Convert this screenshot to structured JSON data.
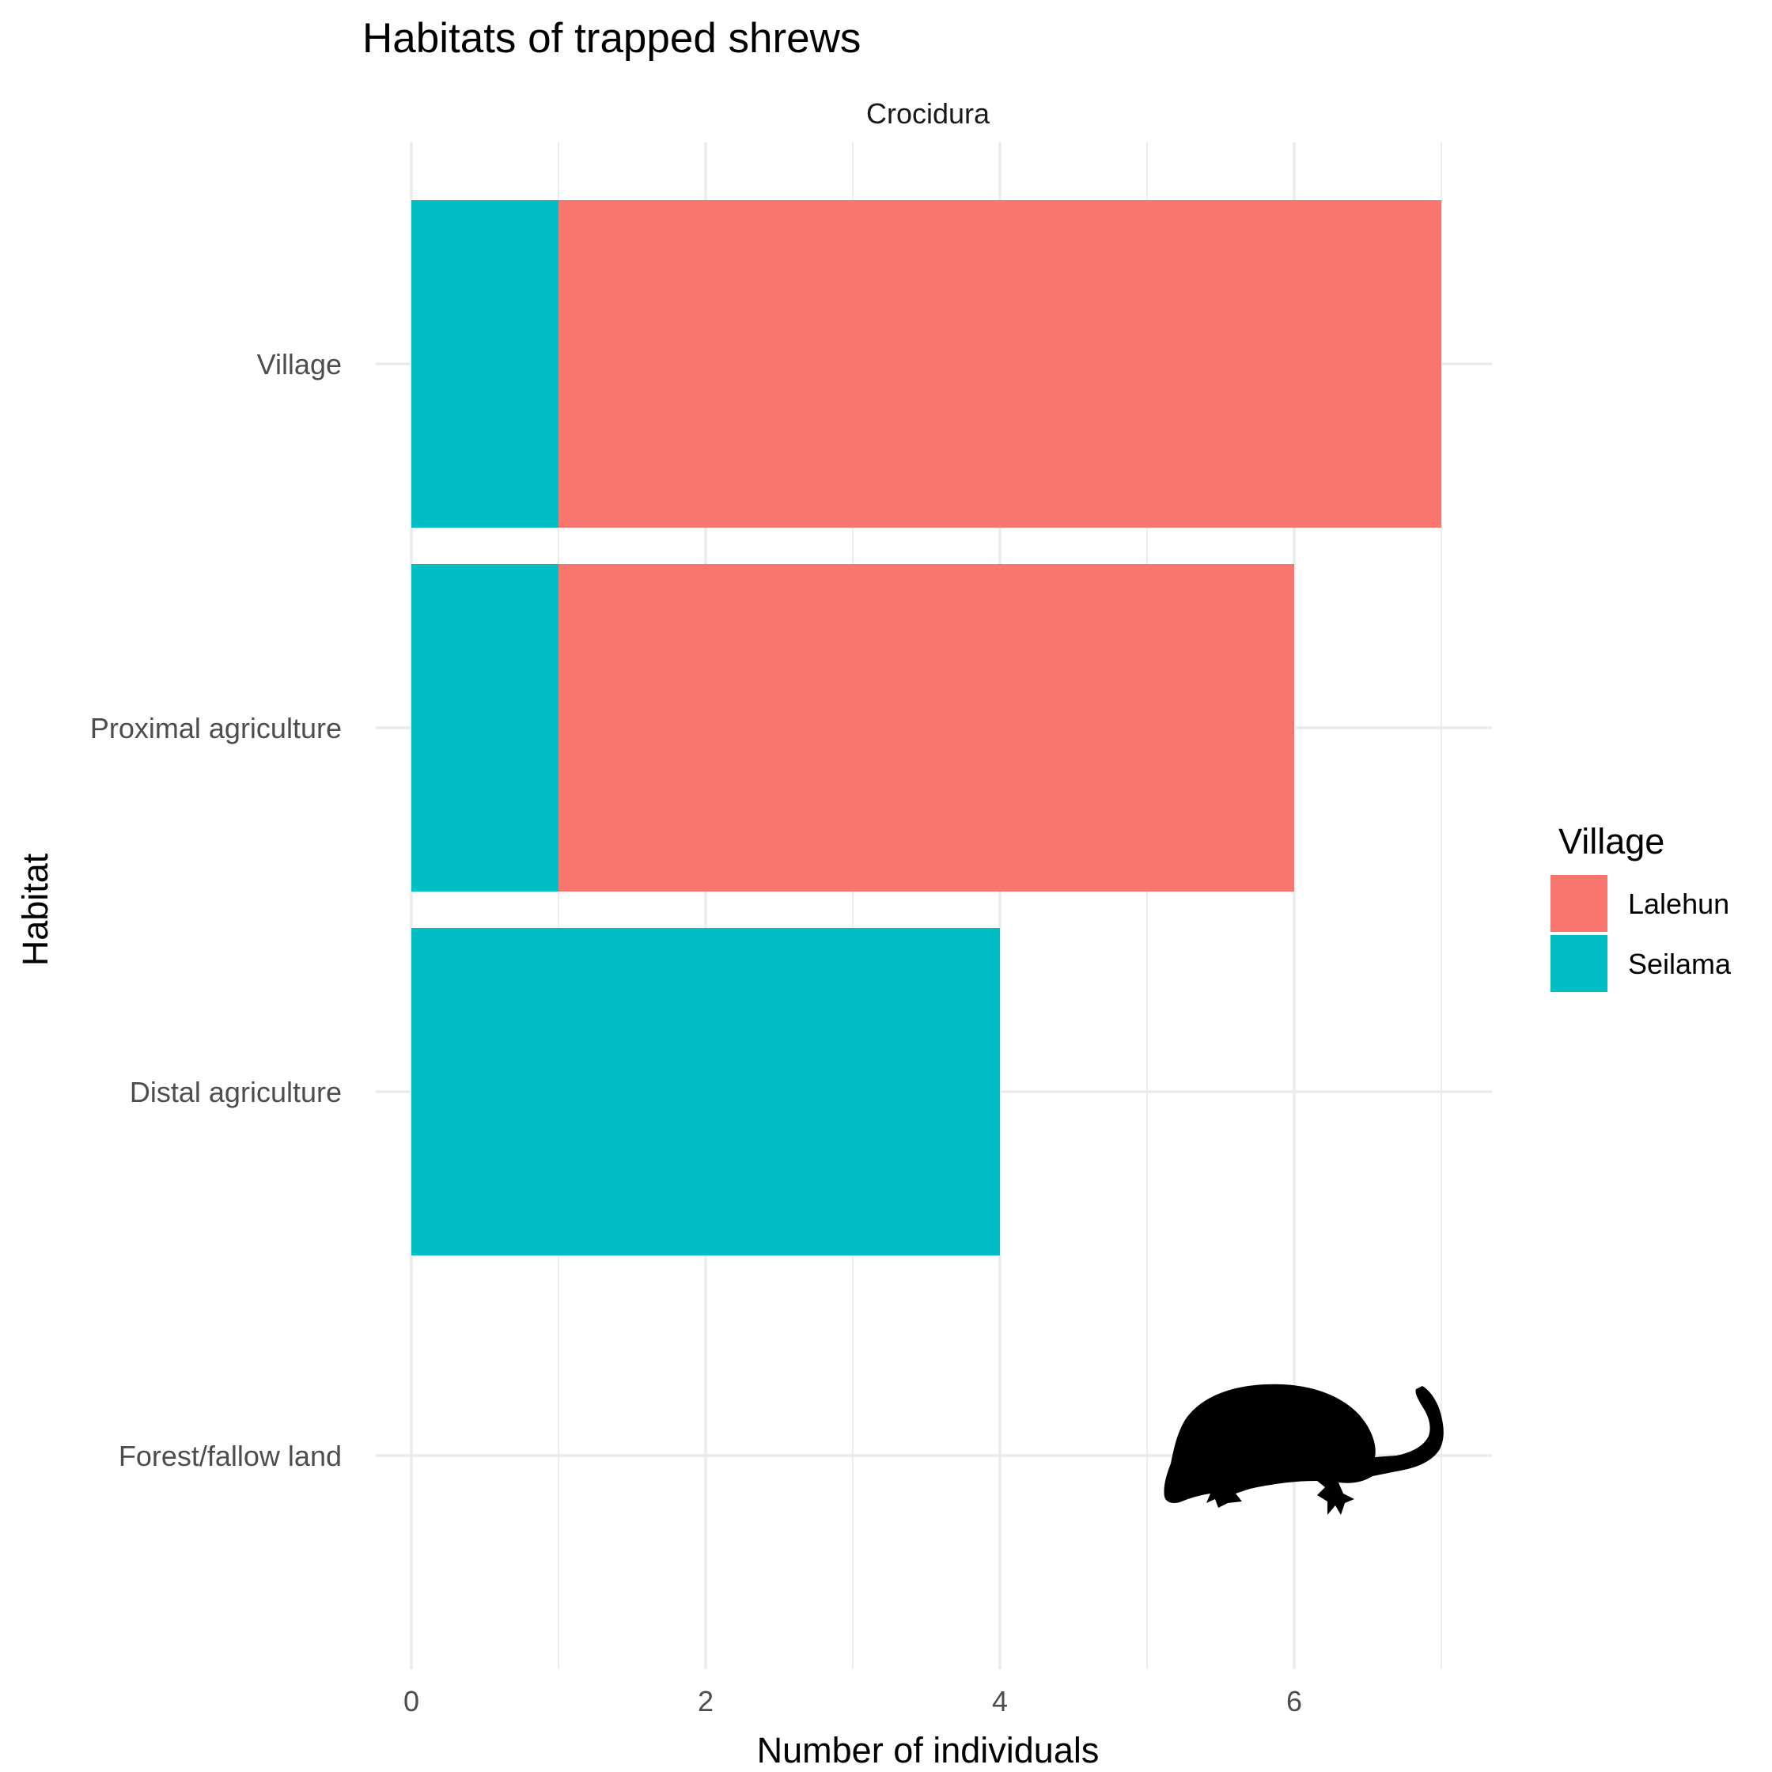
{
  "chart_data": {
    "type": "bar",
    "orientation": "horizontal",
    "stacked": true,
    "title": "Habitats of trapped shrews",
    "facet_label": "Crocidura",
    "xlabel": "Number of individuals",
    "ylabel": "Habitat",
    "xlim": [
      0,
      7.35
    ],
    "x_ticks": [
      0,
      2,
      4,
      6
    ],
    "categories": [
      "Village",
      "Proximal agriculture",
      "Distal agriculture",
      "Forest/fallow land"
    ],
    "series": [
      {
        "name": "Seilama",
        "color": "#00BFC4",
        "values": [
          1,
          1,
          4,
          0
        ]
      },
      {
        "name": "Lalehun",
        "color": "#F8766D",
        "values": [
          6,
          5,
          0,
          0
        ]
      }
    ],
    "legend": {
      "title": "Village",
      "position": "right",
      "entries": [
        {
          "label": "Lalehun",
          "color": "#F8766D"
        },
        {
          "label": "Seilama",
          "color": "#00BFC4"
        }
      ]
    },
    "grid": true,
    "silhouette_icon": "shrew-silhouette-icon"
  }
}
